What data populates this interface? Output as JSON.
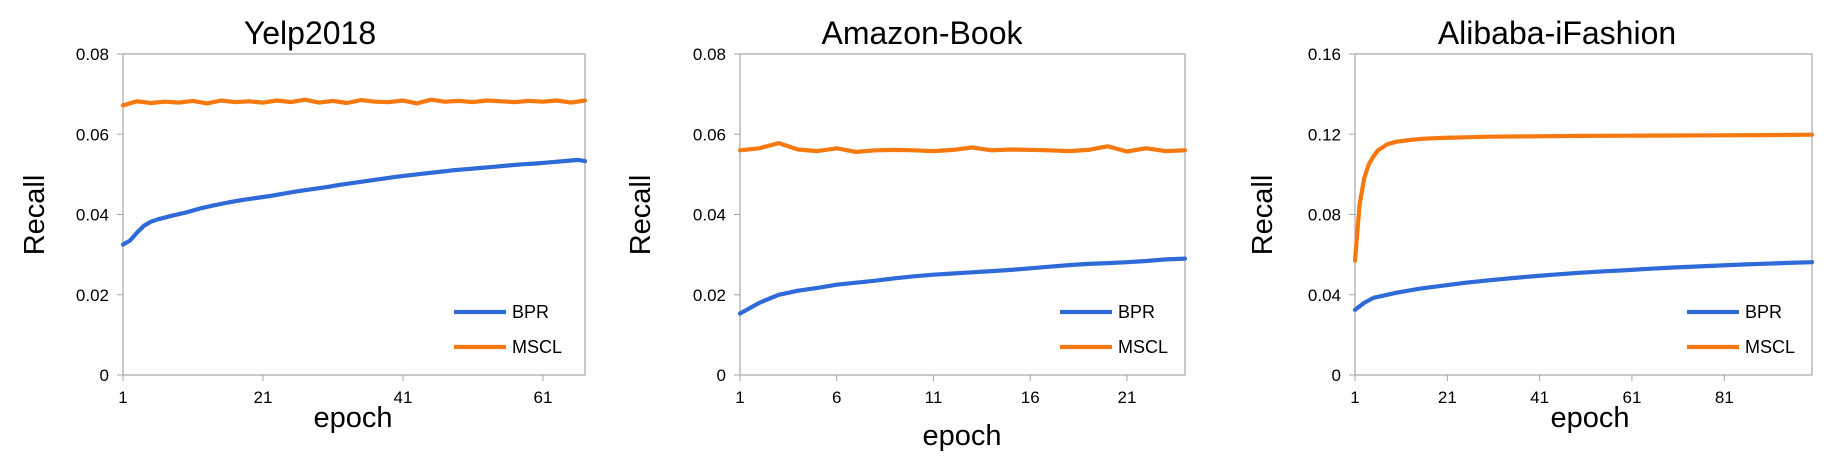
{
  "chart_data": [
    {
      "type": "line",
      "title": "Yelp2018",
      "xlabel": "epoch",
      "ylabel": "Recall",
      "xlim": [
        1,
        67
      ],
      "ylim": [
        0,
        0.08
      ],
      "xticks": [
        1,
        21,
        41,
        61
      ],
      "yticks": [
        "0",
        "0.02",
        "0.04",
        "0.06",
        "0.08"
      ],
      "yticks_values": [
        0,
        0.02,
        0.04,
        0.06,
        0.08
      ],
      "legend_position": "bottom-right",
      "series": [
        {
          "name": "BPR",
          "color": "#2f6ad9",
          "x": [
            1,
            2,
            3,
            4,
            5,
            6,
            8,
            10,
            12,
            14,
            16,
            18,
            20,
            22,
            24,
            26,
            28,
            30,
            32,
            34,
            36,
            38,
            40,
            42,
            44,
            46,
            48,
            50,
            52,
            54,
            56,
            58,
            60,
            62,
            64,
            66,
            67
          ],
          "y": [
            0.0325,
            0.0335,
            0.0355,
            0.0372,
            0.0382,
            0.0388,
            0.0397,
            0.0405,
            0.0415,
            0.0423,
            0.043,
            0.0436,
            0.0441,
            0.0446,
            0.0452,
            0.0458,
            0.0463,
            0.0468,
            0.0474,
            0.0479,
            0.0484,
            0.0489,
            0.0494,
            0.0498,
            0.0502,
            0.0506,
            0.051,
            0.0513,
            0.0516,
            0.0519,
            0.0522,
            0.0525,
            0.0527,
            0.053,
            0.0533,
            0.0536,
            0.0533
          ]
        },
        {
          "name": "MSCL",
          "color": "#f5790f",
          "x": [
            1,
            3,
            5,
            7,
            9,
            11,
            13,
            15,
            17,
            19,
            21,
            23,
            25,
            27,
            29,
            31,
            33,
            35,
            37,
            39,
            41,
            43,
            45,
            47,
            49,
            51,
            53,
            55,
            57,
            59,
            61,
            63,
            65,
            67
          ],
          "y": [
            0.0672,
            0.0682,
            0.0678,
            0.0681,
            0.0679,
            0.0683,
            0.0677,
            0.0684,
            0.068,
            0.0682,
            0.0679,
            0.0684,
            0.068,
            0.0686,
            0.0679,
            0.0683,
            0.0678,
            0.0685,
            0.0681,
            0.068,
            0.0684,
            0.0677,
            0.0686,
            0.0681,
            0.0683,
            0.068,
            0.0684,
            0.0682,
            0.068,
            0.0683,
            0.0681,
            0.0684,
            0.0679,
            0.0684
          ]
        }
      ]
    },
    {
      "type": "line",
      "title": "Amazon-Book",
      "xlabel": "epoch",
      "ylabel": "Recall",
      "xlim": [
        1,
        24
      ],
      "ylim": [
        0,
        0.08
      ],
      "xticks": [
        1,
        6,
        11,
        16,
        21
      ],
      "yticks": [
        "0",
        "0.02",
        "0.04",
        "0.06",
        "0.08"
      ],
      "yticks_values": [
        0,
        0.02,
        0.04,
        0.06,
        0.08
      ],
      "legend_position": "bottom-right",
      "series": [
        {
          "name": "BPR",
          "color": "#2f6ad9",
          "x": [
            1,
            2,
            3,
            4,
            5,
            6,
            7,
            8,
            9,
            10,
            11,
            12,
            13,
            14,
            15,
            16,
            17,
            18,
            19,
            20,
            21,
            22,
            23,
            24
          ],
          "y": [
            0.0153,
            0.018,
            0.02,
            0.021,
            0.0217,
            0.0225,
            0.023,
            0.0235,
            0.0241,
            0.0246,
            0.025,
            0.0253,
            0.0256,
            0.0259,
            0.0262,
            0.0266,
            0.027,
            0.0274,
            0.0277,
            0.0279,
            0.0281,
            0.0284,
            0.0288,
            0.029
          ]
        },
        {
          "name": "MSCL",
          "color": "#f5790f",
          "x": [
            1,
            2,
            3,
            4,
            5,
            6,
            7,
            8,
            9,
            10,
            11,
            12,
            13,
            14,
            15,
            16,
            17,
            18,
            19,
            20,
            21,
            22,
            23,
            24
          ],
          "y": [
            0.056,
            0.0565,
            0.0578,
            0.0562,
            0.0558,
            0.0565,
            0.0556,
            0.056,
            0.0561,
            0.056,
            0.0558,
            0.0561,
            0.0567,
            0.056,
            0.0562,
            0.0561,
            0.056,
            0.0558,
            0.0561,
            0.057,
            0.0557,
            0.0565,
            0.0558,
            0.056
          ]
        }
      ]
    },
    {
      "type": "line",
      "title": "Alibaba-iFashion",
      "xlabel": "epoch",
      "ylabel": "Recall",
      "xlim": [
        1,
        100
      ],
      "ylim": [
        0,
        0.16
      ],
      "xticks": [
        1,
        21,
        41,
        61,
        81
      ],
      "yticks": [
        "0",
        "0.04",
        "0.08",
        "0.12",
        "0.16"
      ],
      "yticks_values": [
        0,
        0.04,
        0.08,
        0.12,
        0.16
      ],
      "legend_position": "bottom-right",
      "series": [
        {
          "name": "BPR",
          "color": "#2f6ad9",
          "x": [
            1,
            3,
            5,
            7,
            10,
            15,
            20,
            25,
            30,
            35,
            40,
            45,
            50,
            55,
            60,
            65,
            70,
            75,
            80,
            85,
            90,
            95,
            100
          ],
          "y": [
            0.0325,
            0.036,
            0.0385,
            0.0395,
            0.041,
            0.043,
            0.0445,
            0.046,
            0.0472,
            0.0483,
            0.0493,
            0.0502,
            0.051,
            0.0517,
            0.0523,
            0.053,
            0.0536,
            0.0541,
            0.0546,
            0.0551,
            0.0555,
            0.0559,
            0.0562
          ]
        },
        {
          "name": "MSCL",
          "color": "#f5790f",
          "x": [
            1,
            2,
            3,
            4,
            5,
            6,
            8,
            10,
            13,
            16,
            20,
            25,
            30,
            40,
            50,
            60,
            70,
            80,
            90,
            95,
            100
          ],
          "y": [
            0.057,
            0.085,
            0.098,
            0.105,
            0.109,
            0.112,
            0.115,
            0.1163,
            0.1172,
            0.1178,
            0.1182,
            0.1185,
            0.1188,
            0.119,
            0.1192,
            0.1193,
            0.1194,
            0.1195,
            0.1196,
            0.1197,
            0.1198
          ]
        }
      ]
    }
  ]
}
